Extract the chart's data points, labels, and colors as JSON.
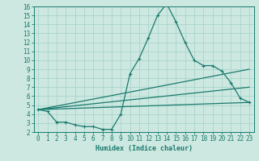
{
  "xlabel": "Humidex (Indice chaleur)",
  "background_color": "#cce8e0",
  "grid_color": "#aad4cc",
  "line_color": "#1a7a6e",
  "xlim": [
    -0.5,
    23.5
  ],
  "ylim": [
    2,
    16
  ],
  "xticks": [
    0,
    1,
    2,
    3,
    4,
    5,
    6,
    7,
    8,
    9,
    10,
    11,
    12,
    13,
    14,
    15,
    16,
    17,
    18,
    19,
    20,
    21,
    22,
    23
  ],
  "yticks": [
    2,
    3,
    4,
    5,
    6,
    7,
    8,
    9,
    10,
    11,
    12,
    13,
    14,
    15,
    16
  ],
  "line1_x": [
    0,
    1,
    2,
    3,
    4,
    5,
    6,
    7,
    8,
    9,
    10,
    11,
    12,
    13,
    14,
    15,
    16,
    17,
    18,
    19,
    20,
    21,
    22,
    23
  ],
  "line1_y": [
    4.5,
    4.3,
    3.1,
    3.1,
    2.8,
    2.6,
    2.6,
    2.3,
    2.3,
    4.0,
    8.5,
    10.2,
    12.5,
    15.0,
    16.3,
    14.3,
    12.0,
    10.0,
    9.4,
    9.4,
    8.8,
    7.5,
    5.8,
    5.3
  ],
  "line2_x": [
    0,
    23
  ],
  "line2_y": [
    4.5,
    9.0
  ],
  "line3_x": [
    0,
    23
  ],
  "line3_y": [
    4.5,
    7.0
  ],
  "line4_x": [
    0,
    23
  ],
  "line4_y": [
    4.5,
    5.3
  ]
}
